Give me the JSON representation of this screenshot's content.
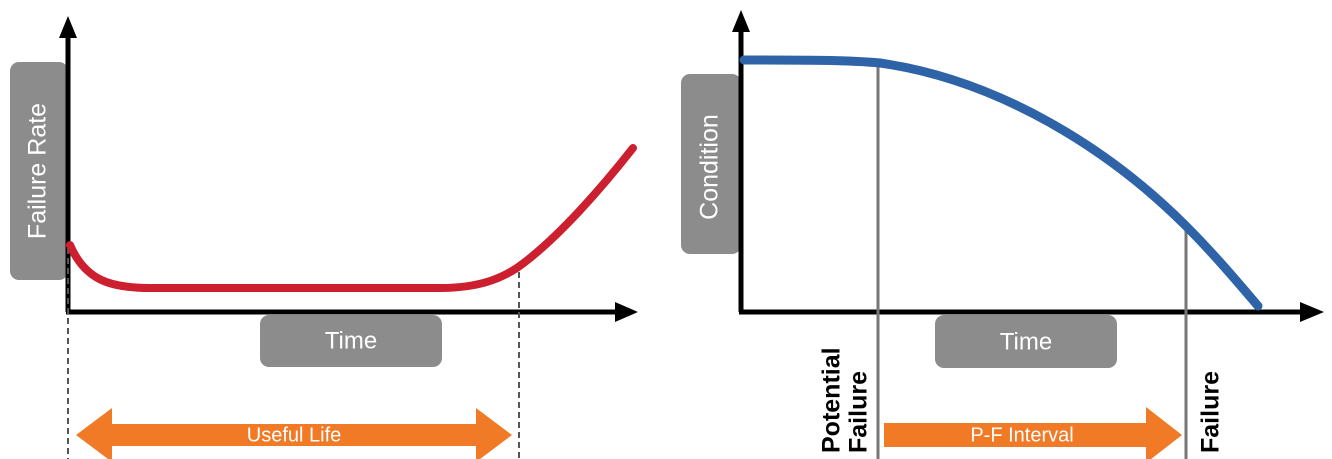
{
  "left_chart": {
    "ylabel": "Failure Rate",
    "xlabel": "Time",
    "span_label": "Useful Life"
  },
  "right_chart": {
    "ylabel": "Condition",
    "xlabel": "Time",
    "interval_label": "P-F Interval",
    "potential_failure_line1": "Potential",
    "potential_failure_line2": "Failure",
    "failure_label": "Failure"
  },
  "colors": {
    "bathtub_curve": "#cc1f2f",
    "condition_curve": "#2f63a8",
    "label_box": "#8c8c8c",
    "arrow": "#f07a26",
    "axis": "#000000"
  }
}
